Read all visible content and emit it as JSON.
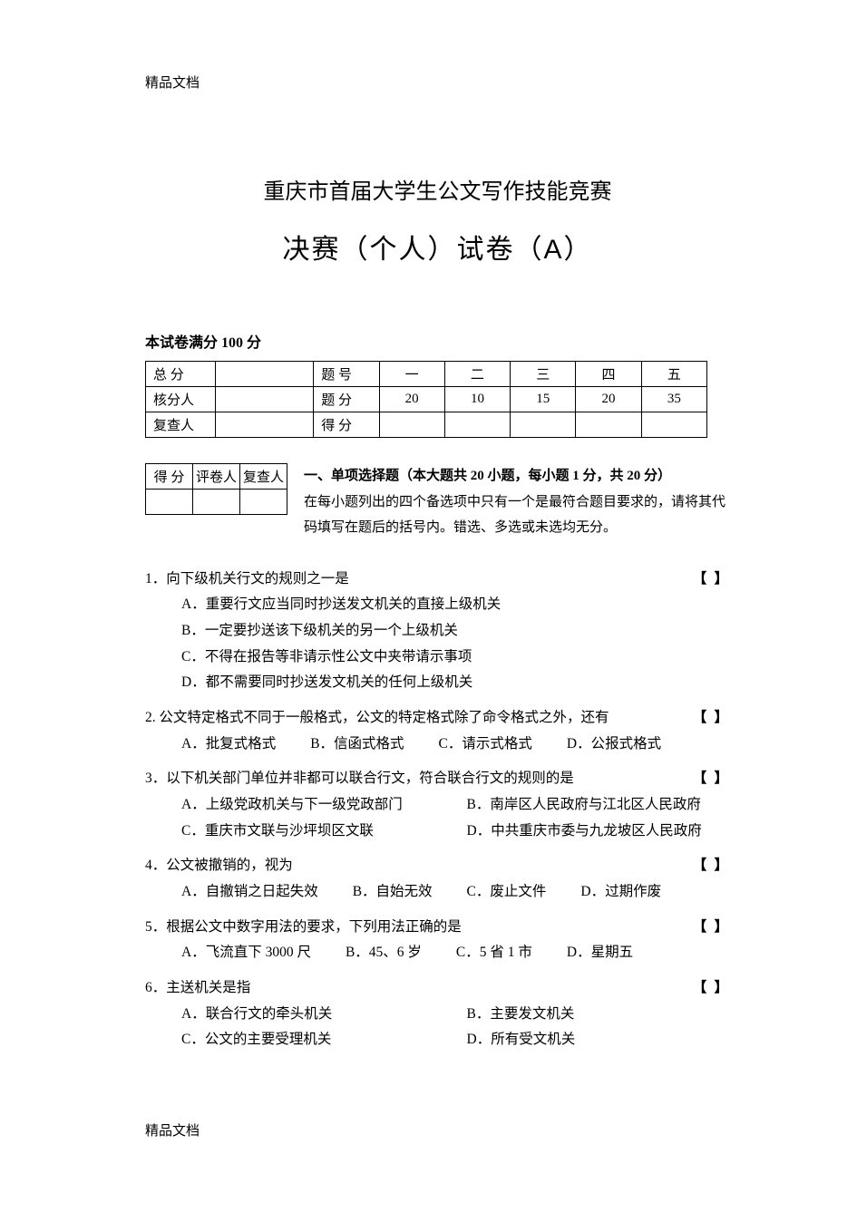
{
  "header_label": "精品文档",
  "footer_label": "精品文档",
  "title_line1": "重庆市首届大学生公文写作技能竞赛",
  "title_line2": "决赛（个人）试卷（A）",
  "score_note": "本试卷满分 100 分",
  "score_table": {
    "r1": {
      "c1": "总  分",
      "c2": "",
      "c3": "题 号",
      "c4": "一",
      "c5": "二",
      "c6": "三",
      "c7": "四",
      "c8": "五"
    },
    "r2": {
      "c1": "核分人",
      "c2": "",
      "c3": "题 分",
      "c4": "20",
      "c5": "10",
      "c6": "15",
      "c7": "20",
      "c8": "35"
    },
    "r3": {
      "c1": "复查人",
      "c2": "",
      "c3": "得 分",
      "c4": "",
      "c5": "",
      "c6": "",
      "c7": "",
      "c8": ""
    }
  },
  "small_table": {
    "h1": "得 分",
    "h2": "评卷人",
    "h3": "复查人"
  },
  "section1": {
    "label": "一、单项选择题",
    "desc1": "（本大题共 20 小题，每小题 1 分，共 20 分）",
    "desc2": "在每小题列出的四个备选项中只有一个是最符合题目要求的，请将其代码填写在题后的括号内。错选、多选或未选均无分。"
  },
  "bracket": "【    】",
  "q1": {
    "stem": "1．向下级机关行文的规则之一是",
    "A": "A．重要行文应当同时抄送发文机关的直接上级机关",
    "B": "B．一定要抄送该下级机关的另一个上级机关",
    "C": "C．不得在报告等非请示性公文中夹带请示事项",
    "D": "D．都不需要同时抄送发文机关的任何上级机关"
  },
  "q2": {
    "stem": "2. 公文特定格式不同于一般格式，公文的特定格式除了命令格式之外，还有",
    "A": "A．批复式格式",
    "B": "B．信函式格式",
    "C": "C．请示式格式",
    "D": "D．公报式格式"
  },
  "q3": {
    "stem": "3．以下机关部门单位并非都可以联合行文，符合联合行文的规则的是",
    "A": "A．上级党政机关与下一级党政部门",
    "B": "B．南岸区人民政府与江北区人民政府",
    "C": "C．重庆市文联与沙坪坝区文联",
    "D": "D．中共重庆市委与九龙坡区人民政府"
  },
  "q4": {
    "stem": "4．公文被撤销的，视为",
    "A": "A．自撤销之日起失效",
    "B": "B．自始无效",
    "C": "C．废止文件",
    "D": "D．过期作废"
  },
  "q5": {
    "stem": "5．根据公文中数字用法的要求，下列用法正确的是",
    "A": "A．飞流直下 3000 尺",
    "B": "B．45、6 岁",
    "C": "C．5 省 1 市",
    "D": "D．星期五"
  },
  "q6": {
    "stem": "6．主送机关是指",
    "A": "A．联合行文的牵头机关",
    "B": "B．主要发文机关",
    "C": "C．公文的主要受理机关",
    "D": "D．所有受文机关"
  }
}
